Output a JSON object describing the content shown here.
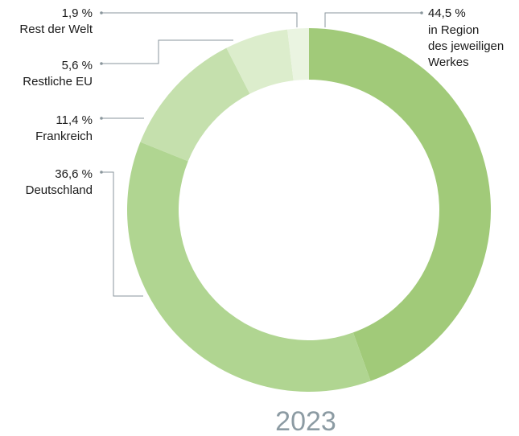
{
  "chart_data": {
    "type": "donut",
    "title": "",
    "year": "2023",
    "colors": [
      "#a1ca79",
      "#b0d591",
      "#c5e0ad",
      "#dcedcc",
      "#eaf4e1"
    ],
    "slices": [
      {
        "value": 44.5,
        "value_label": "44,5 %",
        "label": [
          "in Region",
          "des jeweiligen",
          "Werkes"
        ]
      },
      {
        "value": 36.6,
        "value_label": "36,6 %",
        "label": [
          "Deutschland"
        ]
      },
      {
        "value": 11.4,
        "value_label": "11,4 %",
        "label": [
          "Frankreich"
        ]
      },
      {
        "value": 5.6,
        "value_label": "5,6 %",
        "label": [
          "Restliche EU"
        ]
      },
      {
        "value": 1.9,
        "value_label": "1,9 %",
        "label": [
          "Rest der Welt"
        ]
      }
    ]
  }
}
